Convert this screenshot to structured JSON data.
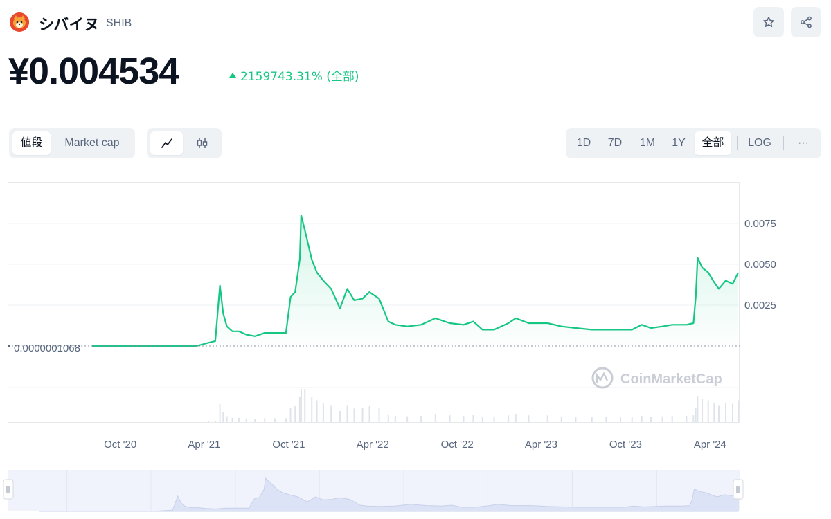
{
  "coin": {
    "name": "シバイヌ",
    "symbol": "SHIB",
    "price": "¥0.004534",
    "change": "2159743.31% (全部)"
  },
  "colors": {
    "line": "#16c784",
    "area_top": "#16c784",
    "grid": "#eff2f5",
    "text_muted": "#58667e",
    "icon": "#e8482b"
  },
  "icons": {
    "favorite": "star-icon",
    "share": "share-icon",
    "line_chart": "line-chart-icon",
    "candle_chart": "candlestick-icon",
    "more": "more-icon"
  },
  "toolbar": {
    "metric_tabs": [
      "値段",
      "Market cap"
    ],
    "metric_active": "値段",
    "range_tabs": [
      "1D",
      "7D",
      "1M",
      "1Y",
      "全部"
    ],
    "range_active": "全部",
    "log_label": "LOG",
    "more_label": "···"
  },
  "watermark": "CoinMarketCap",
  "chart_data": {
    "type": "line",
    "title": "",
    "xlabel": "",
    "ylabel": "",
    "x_ticks": [
      "Oct '20",
      "Apr '21",
      "Oct '21",
      "Apr '22",
      "Oct '22",
      "Apr '23",
      "Oct '23",
      "Apr '24"
    ],
    "y_ticks": [
      "0.0075",
      "0.0050",
      "0.0025"
    ],
    "ylim": [
      0,
      0.01
    ],
    "baseline_label": "0.0000001068",
    "grid": "horizontal",
    "series": [
      {
        "values": [
          [
            "2020-08-01",
            1e-07
          ],
          [
            "2020-10-01",
            1e-07
          ],
          [
            "2020-12-01",
            1e-07
          ],
          [
            "2021-01-15",
            1e-07
          ],
          [
            "2021-03-15",
            1e-07
          ],
          [
            "2021-04-10",
            0.0002
          ],
          [
            "2021-04-25",
            0.0003
          ],
          [
            "2021-05-05",
            0.0037
          ],
          [
            "2021-05-12",
            0.002
          ],
          [
            "2021-05-20",
            0.0012
          ],
          [
            "2021-06-01",
            0.0009
          ],
          [
            "2021-06-15",
            0.0009
          ],
          [
            "2021-07-01",
            0.0007
          ],
          [
            "2021-07-20",
            0.0006
          ],
          [
            "2021-08-10",
            0.0008
          ],
          [
            "2021-09-01",
            0.0008
          ],
          [
            "2021-09-25",
            0.0008
          ],
          [
            "2021-10-05",
            0.003
          ],
          [
            "2021-10-15",
            0.0033
          ],
          [
            "2021-10-25",
            0.0053
          ],
          [
            "2021-10-28",
            0.008
          ],
          [
            "2021-11-05",
            0.0071
          ],
          [
            "2021-11-20",
            0.0053
          ],
          [
            "2021-12-01",
            0.0045
          ],
          [
            "2021-12-15",
            0.004
          ],
          [
            "2022-01-01",
            0.0035
          ],
          [
            "2022-01-20",
            0.0023
          ],
          [
            "2022-02-05",
            0.0035
          ],
          [
            "2022-02-20",
            0.0028
          ],
          [
            "2022-03-10",
            0.0029
          ],
          [
            "2022-03-25",
            0.0033
          ],
          [
            "2022-04-15",
            0.0029
          ],
          [
            "2022-05-05",
            0.0015
          ],
          [
            "2022-05-20",
            0.0013
          ],
          [
            "2022-06-15",
            0.0012
          ],
          [
            "2022-07-15",
            0.0013
          ],
          [
            "2022-08-15",
            0.0017
          ],
          [
            "2022-09-15",
            0.0014
          ],
          [
            "2022-10-15",
            0.0013
          ],
          [
            "2022-11-05",
            0.0015
          ],
          [
            "2022-11-25",
            0.001
          ],
          [
            "2022-12-20",
            0.001
          ],
          [
            "2023-01-20",
            0.0014
          ],
          [
            "2023-02-05",
            0.0017
          ],
          [
            "2023-03-05",
            0.0014
          ],
          [
            "2023-04-15",
            0.0014
          ],
          [
            "2023-05-15",
            0.0012
          ],
          [
            "2023-06-15",
            0.0011
          ],
          [
            "2023-07-20",
            0.001
          ],
          [
            "2023-08-20",
            0.001
          ],
          [
            "2023-09-20",
            0.001
          ],
          [
            "2023-10-15",
            0.001
          ],
          [
            "2023-11-05",
            0.0013
          ],
          [
            "2023-11-25",
            0.0011
          ],
          [
            "2023-12-20",
            0.0012
          ],
          [
            "2024-01-10",
            0.0013
          ],
          [
            "2024-02-10",
            0.0013
          ],
          [
            "2024-02-25",
            0.0014
          ],
          [
            "2024-03-01",
            0.003
          ],
          [
            "2024-03-05",
            0.0054
          ],
          [
            "2024-03-15",
            0.0048
          ],
          [
            "2024-03-28",
            0.0045
          ],
          [
            "2024-04-10",
            0.0039
          ],
          [
            "2024-04-20",
            0.0035
          ],
          [
            "2024-05-05",
            0.004
          ],
          [
            "2024-05-20",
            0.0038
          ],
          [
            "2024-06-01",
            0.0045
          ]
        ]
      }
    ]
  }
}
